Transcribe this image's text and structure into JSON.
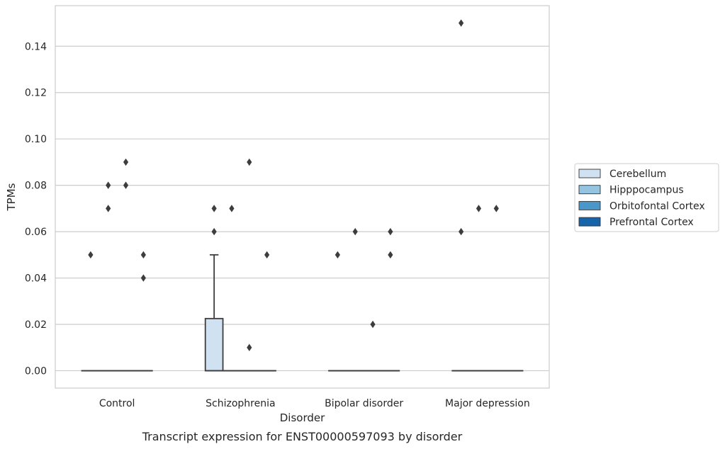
{
  "chart_data": {
    "type": "box",
    "caption": "Transcript expression for ENST00000597093 by disorder",
    "xlabel": "Disorder",
    "ylabel": "TPMs",
    "ylim": [
      -0.0075,
      0.1575
    ],
    "yticks": [
      "0.00",
      "0.02",
      "0.04",
      "0.06",
      "0.08",
      "0.10",
      "0.12",
      "0.14"
    ],
    "ytick_values": [
      0,
      0.02,
      0.04,
      0.06,
      0.08,
      0.1,
      0.12,
      0.14
    ],
    "grid": true,
    "legend_position": "right",
    "categories": [
      "Control",
      "Schizophrenia",
      "Bipolar disorder",
      "Major depression"
    ],
    "series": [
      {
        "name": "Cerebellum",
        "color": "#d0e1f2",
        "boxes": [
          {
            "min": 0,
            "q1": 0,
            "median": 0,
            "q3": 0,
            "max": 0,
            "outliers": [
              0.05
            ]
          },
          {
            "min": 0,
            "q1": 0,
            "median": 0,
            "q3": 0.0225,
            "max": 0.05,
            "outliers": [
              0.06,
              0.07
            ]
          },
          {
            "min": 0,
            "q1": 0,
            "median": 0,
            "q3": 0,
            "max": 0,
            "outliers": [
              0.05
            ]
          },
          {
            "min": 0,
            "q1": 0,
            "median": 0,
            "q3": 0,
            "max": 0,
            "outliers": [
              0.06,
              0.15
            ]
          }
        ]
      },
      {
        "name": "Hipppocampus",
        "color": "#94c4df",
        "boxes": [
          {
            "min": 0,
            "q1": 0,
            "median": 0,
            "q3": 0,
            "max": 0,
            "outliers": [
              0.07,
              0.08
            ]
          },
          {
            "min": 0,
            "q1": 0,
            "median": 0,
            "q3": 0,
            "max": 0,
            "outliers": [
              0.07
            ]
          },
          {
            "min": 0,
            "q1": 0,
            "median": 0,
            "q3": 0,
            "max": 0,
            "outliers": [
              0.06
            ]
          },
          {
            "min": 0,
            "q1": 0,
            "median": 0,
            "q3": 0,
            "max": 0,
            "outliers": [
              0.07
            ]
          }
        ]
      },
      {
        "name": "Orbitofontal Cortex",
        "color": "#4a98c9",
        "boxes": [
          {
            "min": 0,
            "q1": 0,
            "median": 0,
            "q3": 0,
            "max": 0,
            "outliers": [
              0.08,
              0.09
            ]
          },
          {
            "min": 0,
            "q1": 0,
            "median": 0,
            "q3": 0,
            "max": 0,
            "outliers": [
              0.01,
              0.09
            ]
          },
          {
            "min": 0,
            "q1": 0,
            "median": 0,
            "q3": 0,
            "max": 0,
            "outliers": [
              0.02
            ]
          },
          {
            "min": 0,
            "q1": 0,
            "median": 0,
            "q3": 0,
            "max": 0,
            "outliers": [
              0.07
            ]
          }
        ]
      },
      {
        "name": "Prefrontal Cortex",
        "color": "#1764ab",
        "boxes": [
          {
            "min": 0,
            "q1": 0,
            "median": 0,
            "q3": 0,
            "max": 0,
            "outliers": [
              0.04,
              0.05
            ]
          },
          {
            "min": 0,
            "q1": 0,
            "median": 0,
            "q3": 0,
            "max": 0,
            "outliers": [
              0.05
            ]
          },
          {
            "min": 0,
            "q1": 0,
            "median": 0,
            "q3": 0,
            "max": 0,
            "outliers": [
              0.05,
              0.06
            ]
          },
          {
            "min": 0,
            "q1": 0,
            "median": 0,
            "q3": 0,
            "max": 0,
            "outliers": []
          }
        ]
      }
    ]
  }
}
